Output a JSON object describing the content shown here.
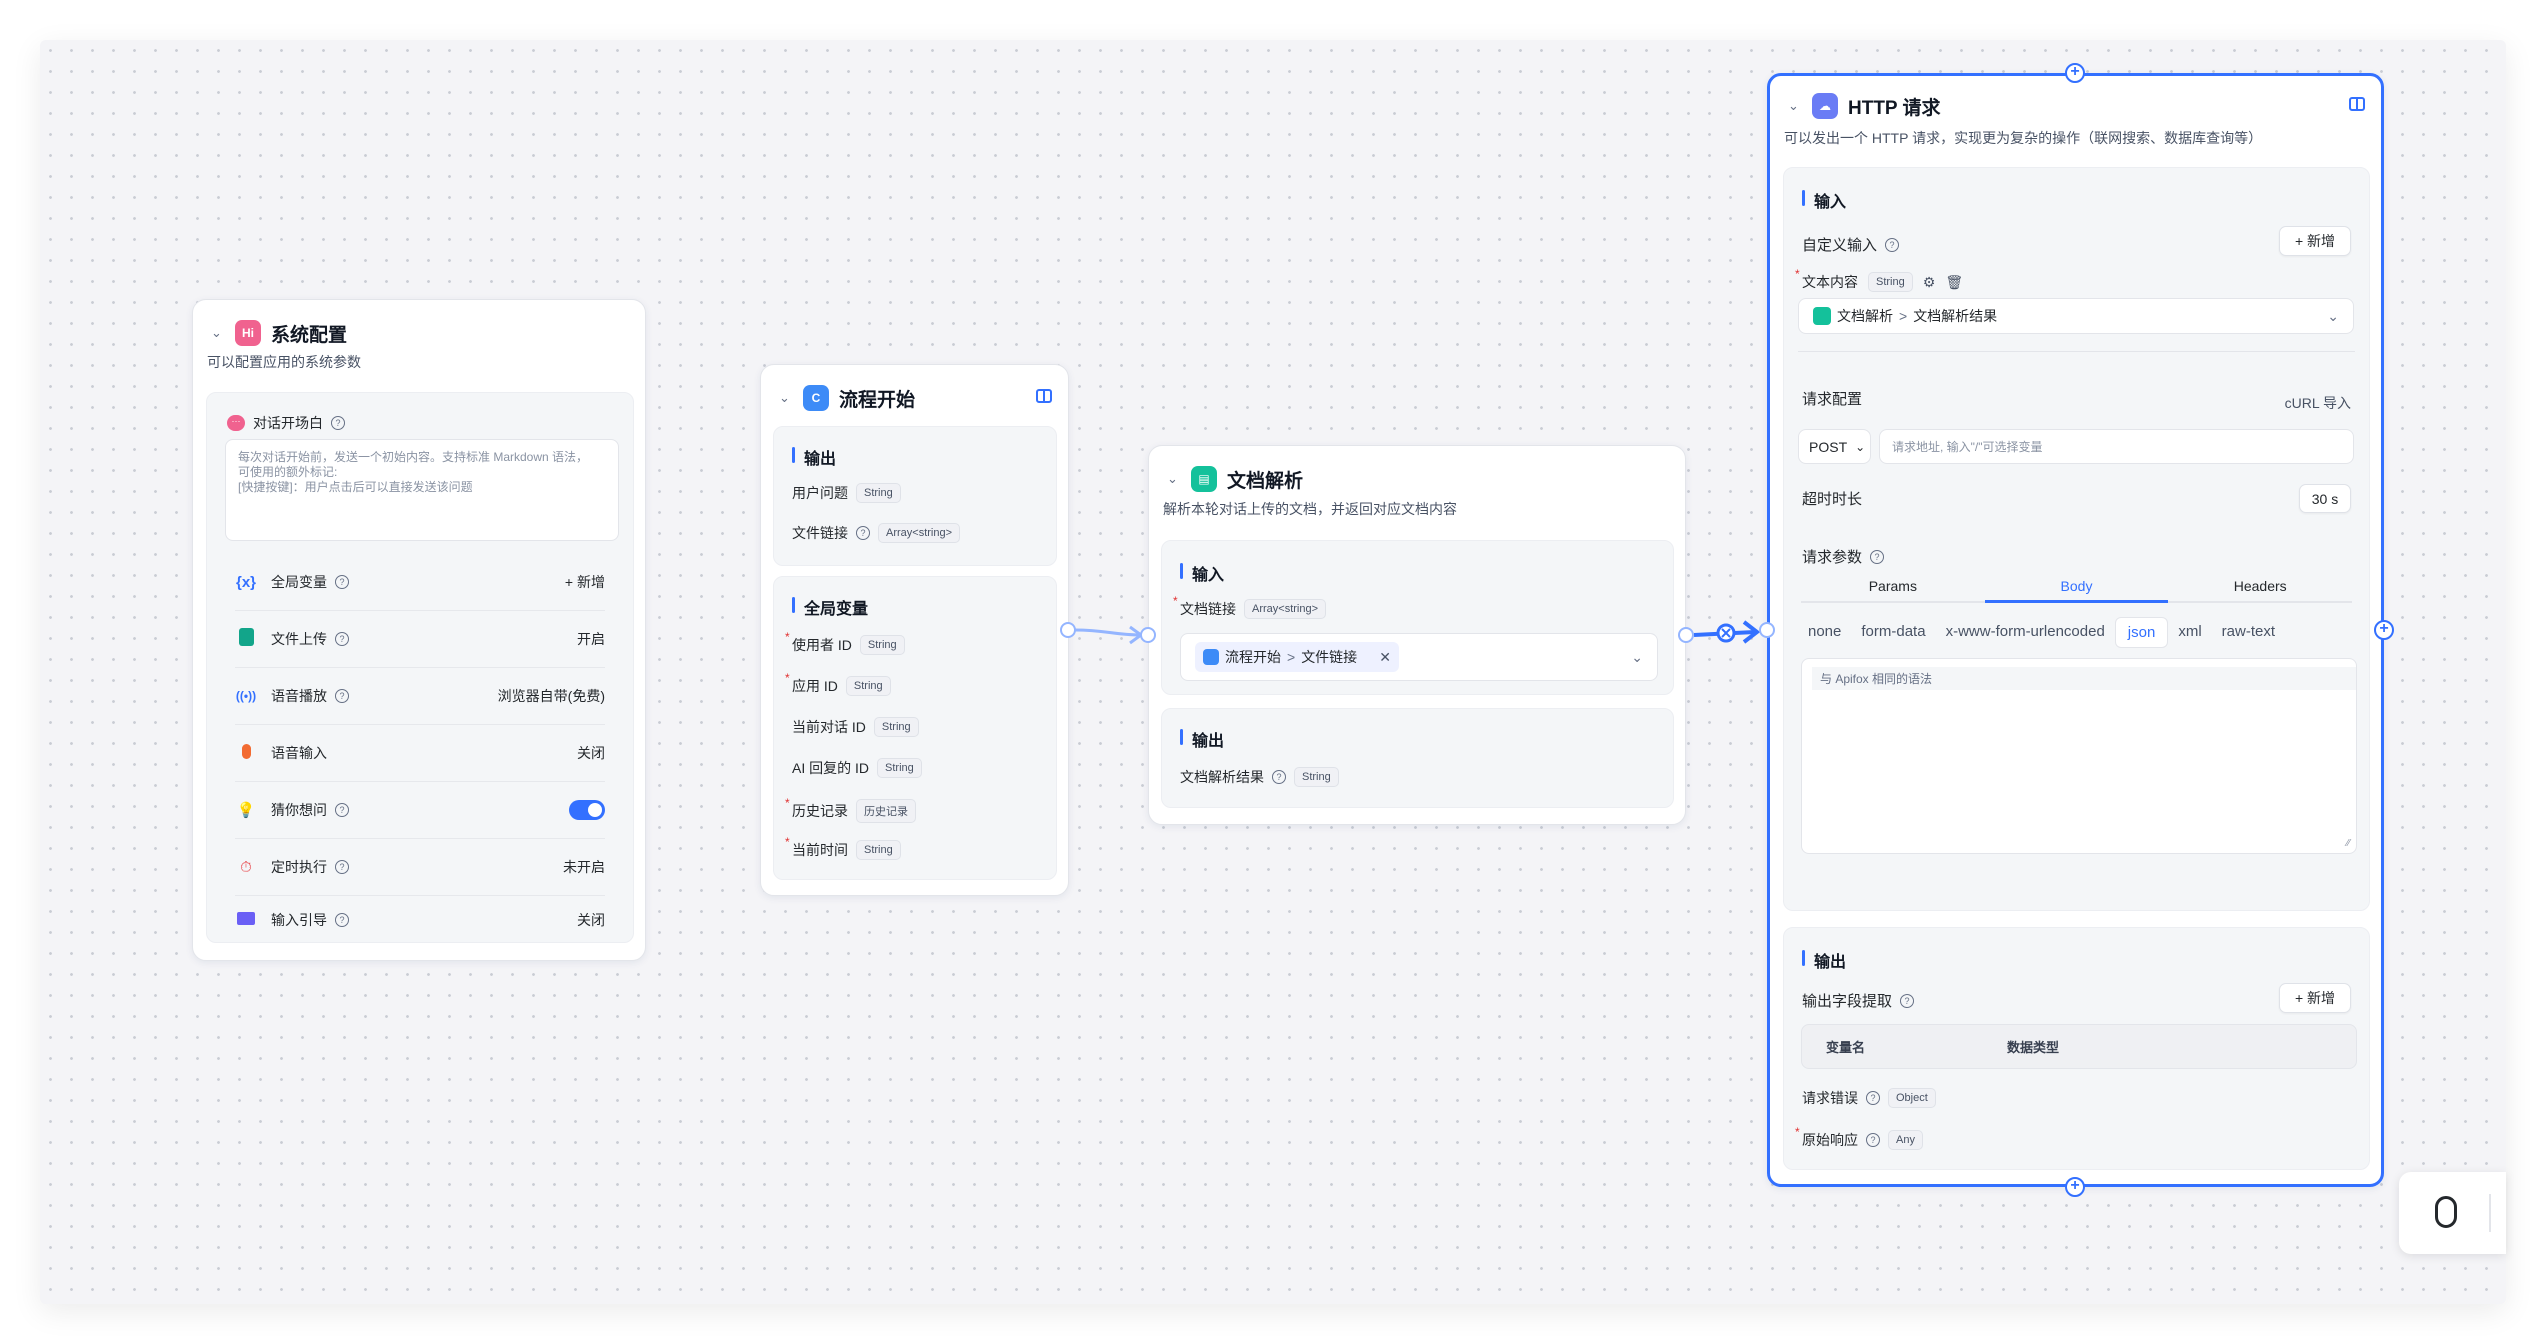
{
  "system": {
    "title": "系统配置",
    "desc": "可以配置应用的系统参数",
    "opener": {
      "label": "对话开场白",
      "placeholder": "每次对话开始前，发送一个初始内容。支持标准 Markdown 语法，\n可使用的额外标记:\n[快捷按键]：用户点击后可以直接发送该问题"
    },
    "rows": [
      {
        "label": "全局变量",
        "value": "+ 新增",
        "icon": "variable-icon"
      },
      {
        "label": "文件上传",
        "value": "开启",
        "icon": "file-icon"
      },
      {
        "label": "语音播放",
        "value": "浏览器自带(免费)",
        "icon": "broadcast-icon"
      },
      {
        "label": "语音输入",
        "value": "关闭",
        "icon": "microphone-icon"
      },
      {
        "label": "猜你想问",
        "value": "",
        "icon": "lightbulb-icon",
        "toggle": true
      },
      {
        "label": "定时执行",
        "value": "未开启",
        "icon": "timer-icon"
      },
      {
        "label": "输入引导",
        "value": "关闭",
        "icon": "input-guide-icon"
      }
    ],
    "colors": {
      "accent": "#3370ff",
      "header_icon": "#f0628f"
    }
  },
  "flow_start": {
    "title": "流程开始",
    "output": {
      "title": "输出",
      "fields": [
        {
          "name": "用户问题",
          "type": "String"
        },
        {
          "name": "文件链接",
          "type": "Array<string>",
          "help": true
        }
      ]
    },
    "globals": {
      "title": "全局变量",
      "fields": [
        {
          "name": "使用者 ID",
          "type": "String",
          "required": true
        },
        {
          "name": "应用 ID",
          "type": "String",
          "required": true
        },
        {
          "name": "当前对话 ID",
          "type": "String"
        },
        {
          "name": "AI 回复的 ID",
          "type": "String"
        },
        {
          "name": "历史记录",
          "type": "历史记录",
          "required": true
        },
        {
          "name": "当前时间",
          "type": "String",
          "required": true
        }
      ]
    }
  },
  "doc_parse": {
    "title": "文档解析",
    "desc": "解析本轮对话上传的文档，并返回对应文档内容",
    "input": {
      "title": "输入",
      "field": {
        "name": "文档链接",
        "type": "Array<string>"
      },
      "ref": {
        "node": "流程开始",
        "sep": ">",
        "var": "文件链接"
      }
    },
    "output": {
      "title": "输出",
      "field": {
        "name": "文档解析结果",
        "type": "String"
      }
    }
  },
  "http": {
    "title": "HTTP 请求",
    "desc": "可以发出一个 HTTP 请求，实现更为复杂的操作（联网搜索、数据库查询等）",
    "input": {
      "title": "输入",
      "custom_label": "自定义输入",
      "add": "+ 新增",
      "field": {
        "name": "文本内容",
        "type": "String"
      },
      "ref": {
        "node": "文档解析",
        "sep": ">",
        "var": "文档解析结果"
      },
      "req_config": "请求配置",
      "curl": "cURL 导入",
      "method": "POST",
      "url_placeholder": "请求地址, 输入\"/\"可选择变量",
      "timeout_label": "超时时长",
      "timeout_value": "30 s",
      "params_label": "请求参数",
      "tabs": [
        "Params",
        "Body",
        "Headers"
      ],
      "active_tab": "Body",
      "body_types": [
        "none",
        "form-data",
        "x-www-form-urlencoded",
        "json",
        "xml",
        "raw-text"
      ],
      "active_body": "json",
      "body_placeholder": "与 Apifox 相同的语法"
    },
    "output": {
      "title": "输出",
      "extract_label": "输出字段提取",
      "add": "+ 新增",
      "columns": [
        "变量名",
        "数据类型"
      ],
      "fields": [
        {
          "name": "请求错误",
          "type": "Object"
        },
        {
          "name": "原始响应",
          "type": "Any",
          "required": true
        }
      ]
    }
  }
}
